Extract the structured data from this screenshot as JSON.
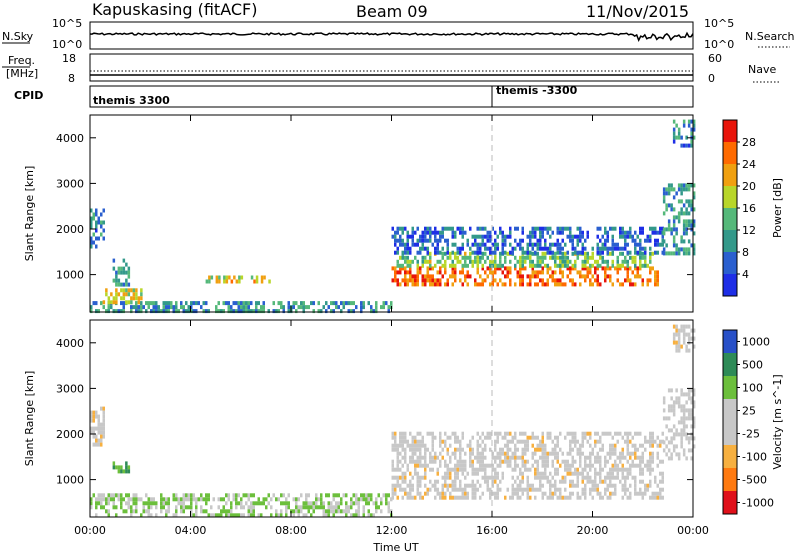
{
  "header": {
    "station": "Kapuskasing (fitACF)",
    "beam": "Beam 09",
    "date": "11/Nov/2015"
  },
  "top_panels": {
    "nsky_label": "N.Sky",
    "nsearch_label": "N.Search",
    "nsky_ticks": [
      "10^5",
      "10^0"
    ],
    "nsearch_ticks": [
      "10^5",
      "10^0"
    ],
    "freq_label_1": "Freq.",
    "freq_label_2": "[MHz]",
    "freq_ticks": [
      "18",
      "8"
    ],
    "nave_label": "Nave",
    "nave_ticks": [
      "60",
      "0"
    ],
    "cpid_label": "CPID",
    "cpid_1": "themis 3300",
    "cpid_2": "themis -3300",
    "cpid_change_hour": 16.0
  },
  "colors": {
    "power_scale": [
      "#1e2ee6",
      "#2a5fcf",
      "#33998a",
      "#55b87a",
      "#b8d62a",
      "#f0a010",
      "#ff6a00",
      "#e8140a"
    ],
    "velocity_scale": [
      "#e0101a",
      "#ff7a10",
      "#f7b040",
      "#c8c8c8",
      "#c8c8c8",
      "#6cbf3c",
      "#2e8b57",
      "#2850c8"
    ],
    "ground_gray": "#c8c8c8"
  },
  "chart_data": [
    {
      "type": "heatmap",
      "name": "power",
      "xlabel": "Time UT",
      "ylabel": "Slant Range [km]",
      "xticks": [
        "00:00",
        "04:00",
        "08:00",
        "12:00",
        "16:00",
        "20:00",
        "00:00"
      ],
      "xlim": [
        0,
        24
      ],
      "yticks": [
        1000,
        2000,
        3000,
        4000
      ],
      "ylim": [
        180,
        4500
      ],
      "colorbar_label": "Power [dB]",
      "colorbar_ticks": [
        4,
        8,
        12,
        16,
        20,
        24,
        28
      ],
      "colorbar_range": [
        0,
        30
      ],
      "regions": [
        {
          "t0": 12.0,
          "t1": 22.6,
          "r0": 780,
          "r1": 1180,
          "power": 24
        },
        {
          "t0": 12.2,
          "t1": 22.4,
          "r0": 1180,
          "r1": 1500,
          "power": 14
        },
        {
          "t0": 12.0,
          "t1": 22.8,
          "r0": 1500,
          "r1": 2050,
          "power": 6
        },
        {
          "t0": 0.0,
          "t1": 12.0,
          "r0": 180,
          "r1": 420,
          "power": 10
        },
        {
          "t0": 0.5,
          "t1": 2.0,
          "r0": 420,
          "r1": 700,
          "power": 18
        },
        {
          "t0": 0.9,
          "t1": 1.5,
          "r0": 750,
          "r1": 1350,
          "power": 10
        },
        {
          "t0": 4.6,
          "t1": 6.0,
          "r0": 870,
          "r1": 980,
          "power": 18
        },
        {
          "t0": 6.4,
          "t1": 7.1,
          "r0": 870,
          "r1": 980,
          "power": 18
        },
        {
          "t0": 0.0,
          "t1": 0.5,
          "r0": 1650,
          "r1": 2450,
          "power": 8
        },
        {
          "t0": 22.8,
          "t1": 24.0,
          "r0": 1500,
          "r1": 3000,
          "power": 10
        },
        {
          "t0": 23.2,
          "t1": 24.0,
          "r0": 3800,
          "r1": 4400,
          "power": 8
        }
      ]
    },
    {
      "type": "heatmap",
      "name": "velocity",
      "xlabel": "Time UT",
      "ylabel": "Slant Range [km]",
      "xticks": [
        "00:00",
        "04:00",
        "08:00",
        "12:00",
        "16:00",
        "20:00",
        "00:00"
      ],
      "xlim": [
        0,
        24
      ],
      "yticks": [
        1000,
        2000,
        3000,
        4000
      ],
      "ylim": [
        180,
        4500
      ],
      "colorbar_label": "Velocity [m s^-1]",
      "colorbar_ticks": [
        "1000",
        "500",
        "100",
        "25",
        "-25",
        "-100",
        "-500",
        "-1000"
      ],
      "regions": [
        {
          "t0": 12.0,
          "t1": 22.8,
          "r0": 600,
          "r1": 2050,
          "velocity": 0
        },
        {
          "t0": 0.0,
          "t1": 12.0,
          "r0": 180,
          "r1": 700,
          "velocity": 100
        },
        {
          "t0": 0.0,
          "t1": 0.5,
          "r0": 1800,
          "r1": 2600,
          "velocity": 0
        },
        {
          "t0": 0.9,
          "t1": 1.5,
          "r0": 1200,
          "r1": 1400,
          "velocity": 500
        },
        {
          "t0": 22.8,
          "t1": 24.0,
          "r0": 1500,
          "r1": 3000,
          "velocity": 50
        },
        {
          "t0": 23.2,
          "t1": 24.0,
          "r0": 3800,
          "r1": 4400,
          "velocity": 0
        }
      ]
    }
  ]
}
